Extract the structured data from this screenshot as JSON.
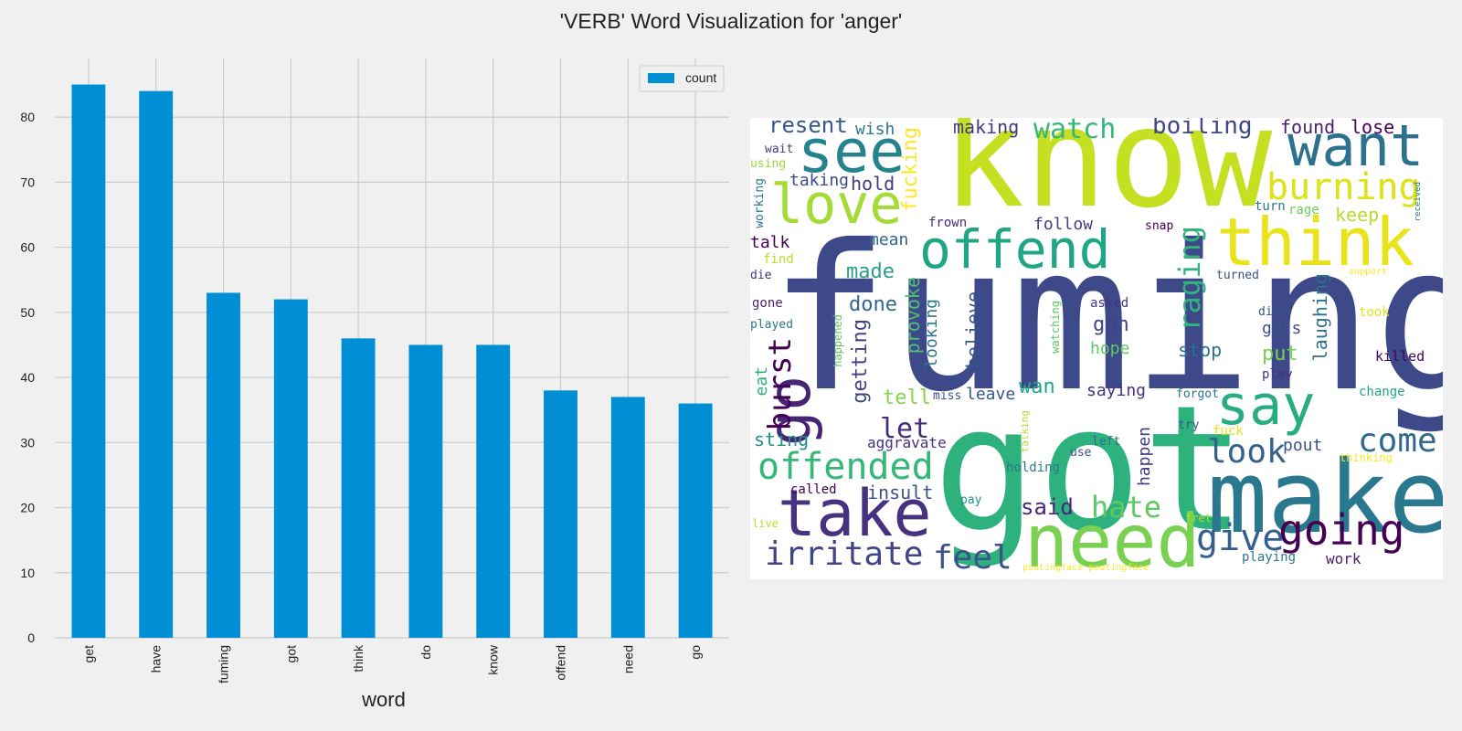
{
  "figure": {
    "title": "'VERB' Word Visualization for 'anger'"
  },
  "chart_data": [
    {
      "type": "bar",
      "categories": [
        "get",
        "have",
        "fuming",
        "got",
        "think",
        "do",
        "know",
        "offend",
        "need",
        "go"
      ],
      "series": [
        {
          "name": "count",
          "values": [
            85,
            84,
            53,
            52,
            46,
            45,
            45,
            38,
            37,
            36
          ]
        }
      ],
      "xlabel": "word",
      "ylabel": "",
      "ylim": [
        0,
        89
      ],
      "yticks": [
        0,
        10,
        20,
        30,
        40,
        50,
        60,
        70,
        80
      ],
      "grid": true,
      "legend_position": "top-right",
      "bar_color": "#008fd5"
    },
    {
      "type": "wordcloud",
      "background": "#ffffff",
      "words": [
        {
          "text": "fuming",
          "color": "#3e4989"
        },
        {
          "text": "got",
          "color": "#2db27d"
        },
        {
          "text": "know",
          "color": "#c5e021"
        },
        {
          "text": "make",
          "color": "#2a788e"
        },
        {
          "text": "take",
          "color": "#46327e"
        },
        {
          "text": "need",
          "color": "#7ad151"
        },
        {
          "text": "think",
          "color": "#e8e419"
        },
        {
          "text": "offend",
          "color": "#21a685"
        },
        {
          "text": "see",
          "color": "#25838e"
        },
        {
          "text": "want",
          "color": "#2c728e"
        },
        {
          "text": "love",
          "color": "#a5db36"
        },
        {
          "text": "say",
          "color": "#27ad81"
        },
        {
          "text": "going",
          "color": "#440154"
        },
        {
          "text": "burning",
          "color": "#dde318"
        },
        {
          "text": "go",
          "color": "#482475"
        },
        {
          "text": "irritate",
          "color": "#414487"
        },
        {
          "text": "offended",
          "color": "#35b779"
        },
        {
          "text": "raging",
          "color": "#2fb47c"
        },
        {
          "text": "come",
          "color": "#31688e"
        },
        {
          "text": "give",
          "color": "#355f8d"
        },
        {
          "text": "burst",
          "color": "#440154"
        },
        {
          "text": "look",
          "color": "#33638d"
        },
        {
          "text": "feel",
          "color": "#3b528b"
        },
        {
          "text": "hate",
          "color": "#5ec962"
        },
        {
          "text": "let",
          "color": "#472c7a"
        },
        {
          "text": "watch",
          "color": "#35b779"
        },
        {
          "text": "boiling",
          "color": "#404688"
        },
        {
          "text": "resent",
          "color": "#38588c"
        },
        {
          "text": "fucking",
          "color": "#fde725"
        },
        {
          "text": "provoke",
          "color": "#4ac16d"
        },
        {
          "text": "getting",
          "color": "#414487"
        },
        {
          "text": "believe",
          "color": "#3a548c"
        },
        {
          "text": "laughing",
          "color": "#2c728e"
        },
        {
          "text": "made",
          "color": "#2a9d8f"
        },
        {
          "text": "keep",
          "color": "#b5de2b"
        },
        {
          "text": "found",
          "color": "#481f70"
        },
        {
          "text": "lose",
          "color": "#440154"
        },
        {
          "text": "making",
          "color": "#443983"
        },
        {
          "text": "wish",
          "color": "#2a788e"
        },
        {
          "text": "hold",
          "color": "#443a83"
        },
        {
          "text": "taking",
          "color": "#3e4989"
        },
        {
          "text": "follow",
          "color": "#433e85"
        },
        {
          "text": "talk",
          "color": "#440154"
        },
        {
          "text": "mean",
          "color": "#32658e"
        },
        {
          "text": "done",
          "color": "#31688e"
        },
        {
          "text": "gon",
          "color": "#414487"
        },
        {
          "text": "stop",
          "color": "#2c728e"
        },
        {
          "text": "gets",
          "color": "#3b528b"
        },
        {
          "text": "put",
          "color": "#7ad151"
        },
        {
          "text": "tell",
          "color": "#86d549"
        },
        {
          "text": "looking",
          "color": "#2a788e"
        },
        {
          "text": "eat",
          "color": "#29af7f"
        },
        {
          "text": "sting",
          "color": "#21918c"
        },
        {
          "text": "saying",
          "color": "#46327e"
        },
        {
          "text": "wan",
          "color": "#22a884"
        },
        {
          "text": "leave",
          "color": "#39568c"
        },
        {
          "text": "hope",
          "color": "#5ec962"
        },
        {
          "text": "happen",
          "color": "#443983"
        },
        {
          "text": "said",
          "color": "#482878"
        },
        {
          "text": "insult",
          "color": "#3b528b"
        },
        {
          "text": "aggravate",
          "color": "#46327e"
        },
        {
          "text": "pout",
          "color": "#3b528b"
        },
        {
          "text": "work",
          "color": "#481f70"
        },
        {
          "text": "playing",
          "color": "#2a788e"
        },
        {
          "text": "wait",
          "color": "#443983"
        },
        {
          "text": "using",
          "color": "#9bd93c"
        },
        {
          "text": "working",
          "color": "#2a788e"
        },
        {
          "text": "frown",
          "color": "#472c7a"
        },
        {
          "text": "find",
          "color": "#bddf26"
        },
        {
          "text": "die",
          "color": "#46327e"
        },
        {
          "text": "gone",
          "color": "#482173"
        },
        {
          "text": "played",
          "color": "#2a788e"
        },
        {
          "text": "happened",
          "color": "#5ec962"
        },
        {
          "text": "watching",
          "color": "#5ec962"
        },
        {
          "text": "asked",
          "color": "#46327e"
        },
        {
          "text": "died",
          "color": "#3b528b"
        },
        {
          "text": "snap",
          "color": "#440154"
        },
        {
          "text": "turned",
          "color": "#3b528b"
        },
        {
          "text": "turn",
          "color": "#2a788e"
        },
        {
          "text": "rage",
          "color": "#6ccd5a"
        },
        {
          "text": "received",
          "color": "#2a788e"
        },
        {
          "text": "support",
          "color": "#fde725"
        },
        {
          "text": "took",
          "color": "#dde318"
        },
        {
          "text": "killed",
          "color": "#440154"
        },
        {
          "text": "play",
          "color": "#46327e"
        },
        {
          "text": "change",
          "color": "#21a685"
        },
        {
          "text": "forgot",
          "color": "#2a788e"
        },
        {
          "text": "miss",
          "color": "#3b528b"
        },
        {
          "text": "talking",
          "color": "#b5de2b"
        },
        {
          "text": "try",
          "color": "#3b528b"
        },
        {
          "text": "fuck",
          "color": "#dde318"
        },
        {
          "text": "left",
          "color": "#31688e"
        },
        {
          "text": "use",
          "color": "#3b528b"
        },
        {
          "text": "thinking",
          "color": "#fde725"
        },
        {
          "text": "holding",
          "color": "#2a788e"
        },
        {
          "text": "called",
          "color": "#440154"
        },
        {
          "text": "pay",
          "color": "#21918c"
        },
        {
          "text": "live",
          "color": "#bddf26"
        },
        {
          "text": "fret",
          "color": "#b5de2b"
        },
        {
          "text": "poutingface poutingface",
          "color": "#fde725"
        }
      ]
    }
  ]
}
